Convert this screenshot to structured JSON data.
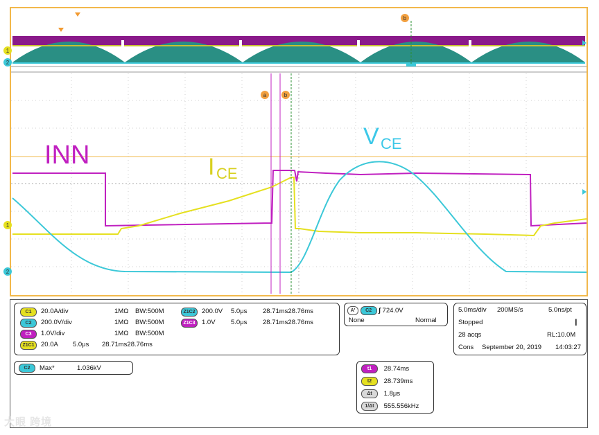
{
  "annotations": {
    "inn": "INN",
    "ice_main": "I",
    "ice_sub": "CE",
    "vce_main": "V",
    "vce_sub": "CE"
  },
  "markers": {
    "a": "a",
    "b": "b",
    "ch1": "1",
    "ch2": "2"
  },
  "colors": {
    "c1": "#e5e020",
    "c2": "#3cc8d8",
    "c3": "#c020c0",
    "z1c1": "#e0a020",
    "frame": "#f2b84b"
  },
  "channels": [
    {
      "badge": "C1",
      "scale": "20.0A/div",
      "imp": "1MΩ",
      "bw": "W:500M"
    },
    {
      "badge": "C2",
      "scale": "200.0V/div",
      "imp": "1MΩ",
      "bw": "W:500M"
    },
    {
      "badge": "C3",
      "scale": "1.0V/div",
      "imp": "1MΩ",
      "bw": "W:500M"
    }
  ],
  "z1c1": {
    "badge": "Z1C1",
    "scale": "20.0A",
    "time": "5.0μs",
    "range": "28.71ms28.76ms"
  },
  "zooms": [
    {
      "badge": "Z1C2",
      "scale": "200.0V",
      "time": "5.0μs",
      "range": "28.71ms28.76ms"
    },
    {
      "badge": "Z1C3",
      "scale": "1.0V",
      "time": "5.0μs",
      "range": "28.71ms28.76ms"
    }
  ],
  "bw_prefix": "B",
  "trigger": {
    "a_badge": "A'",
    "src": "C2",
    "level": "724.0V",
    "mode1": "None",
    "mode2": "Normal"
  },
  "acq": {
    "timebase": "5.0ms/div",
    "rate": "200MS/s",
    "pt": "5.0ns/pt",
    "state": "Stopped",
    "acqs": "28 acqs",
    "rl": "RL:10.0M",
    "cons": "Cons",
    "date": "September 20, 2019",
    "time": "14:03:27"
  },
  "measure": {
    "badge": "C2",
    "label": "Max*",
    "value": "1.036kV"
  },
  "cursors": [
    {
      "badge": "t1",
      "value": "28.74ms"
    },
    {
      "badge": "t2",
      "value": "28.739ms"
    },
    {
      "badge": "Δt",
      "value": "1.8μs"
    },
    {
      "badge": "1/Δt",
      "value": "555.556kHz"
    }
  ],
  "watermark": "大眼 跨境"
}
